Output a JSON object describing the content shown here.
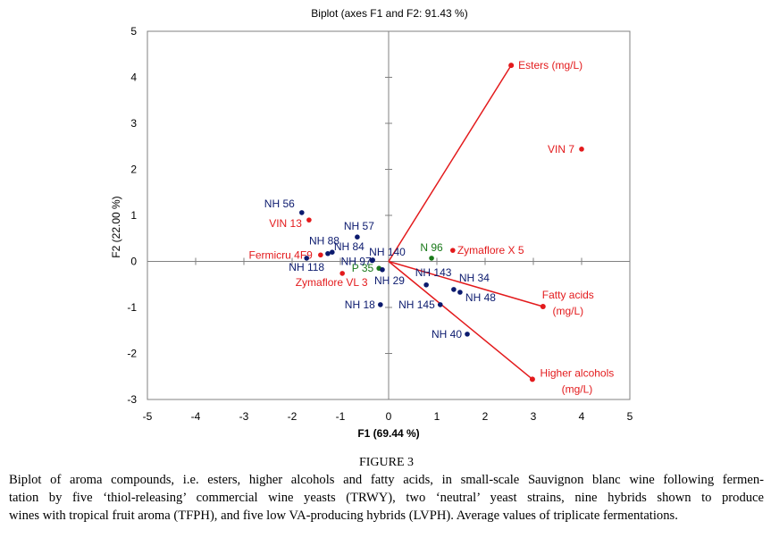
{
  "chart_data": {
    "type": "scatter",
    "subtype": "biplot",
    "title": "Biplot (axes F1 and F2: 91.43 %)",
    "xlabel": "F1 (69.44 %)",
    "ylabel": "F2 (22.00 %)",
    "xlim": [
      -5,
      5
    ],
    "ylim": [
      -3,
      5
    ],
    "xticks": [
      "-5",
      "-4",
      "-3",
      "-2",
      "-1",
      "0",
      "1",
      "2",
      "3",
      "4",
      "5"
    ],
    "yticks": [
      "-3",
      "-2",
      "-1",
      "0",
      "1",
      "2",
      "3",
      "4",
      "5"
    ],
    "grid": false,
    "colors": {
      "variable": "#e31a1c",
      "trwy": "#e31a1c",
      "neutral": "#1a7a1a",
      "hybrid": "#0b1a6e",
      "axis": "#808080"
    },
    "variables": [
      {
        "name": "Esters (mg/L)",
        "label_lines": [
          "Esters (mg/L)"
        ],
        "x": 2.54,
        "y": 4.26
      },
      {
        "name": "Fatty acids (mg/L)",
        "label_lines": [
          "Fatty acids",
          "(mg/L)"
        ],
        "x": 3.2,
        "y": -0.98
      },
      {
        "name": "Higher alcohols (mg/L)",
        "label_lines": [
          "Higher alcohols",
          "(mg/L)"
        ],
        "x": 2.98,
        "y": -2.56
      }
    ],
    "observations": [
      {
        "name": "VIN 7",
        "group": "trwy",
        "x": 4.0,
        "y": 2.44
      },
      {
        "name": "VIN 13",
        "group": "trwy",
        "x": -1.65,
        "y": 0.9
      },
      {
        "name": "Fermicru 4F9",
        "group": "trwy",
        "x": -1.41,
        "y": 0.14
      },
      {
        "name": "Zymaflore VL 3",
        "group": "trwy",
        "x": -0.96,
        "y": -0.26
      },
      {
        "name": "Zymaflore X 5",
        "group": "trwy",
        "x": 1.33,
        "y": 0.24
      },
      {
        "name": "N 96",
        "group": "neutral",
        "x": 0.89,
        "y": 0.07
      },
      {
        "name": "P 35",
        "group": "neutral",
        "x": -0.2,
        "y": -0.15
      },
      {
        "name": "NH 56",
        "group": "hybrid",
        "x": -1.8,
        "y": 1.06
      },
      {
        "name": "NH 57",
        "group": "hybrid",
        "x": -0.65,
        "y": 0.53
      },
      {
        "name": "NH 88",
        "group": "hybrid",
        "x": -1.26,
        "y": 0.17
      },
      {
        "name": "NH 84",
        "group": "hybrid",
        "x": -1.17,
        "y": 0.2
      },
      {
        "name": "NH 118",
        "group": "hybrid",
        "x": -1.7,
        "y": 0.07
      },
      {
        "name": "NH 97",
        "group": "hybrid",
        "x": -0.34,
        "y": 0.02
      },
      {
        "name": "NH 140",
        "group": "hybrid",
        "x": -0.33,
        "y": 0.03
      },
      {
        "name": "NH 29",
        "group": "hybrid",
        "x": -0.13,
        "y": -0.18
      },
      {
        "name": "NH 18",
        "group": "hybrid",
        "x": -0.17,
        "y": -0.94
      },
      {
        "name": "NH 143",
        "group": "hybrid",
        "x": 0.78,
        "y": -0.51
      },
      {
        "name": "NH 34",
        "group": "hybrid",
        "x": 1.35,
        "y": -0.61
      },
      {
        "name": "NH 48",
        "group": "hybrid",
        "x": 1.48,
        "y": -0.67
      },
      {
        "name": "NH 145",
        "group": "hybrid",
        "x": 1.07,
        "y": -0.94
      },
      {
        "name": "NH 40",
        "group": "hybrid",
        "x": 1.63,
        "y": -1.58
      }
    ]
  },
  "figure": {
    "label": "FIGURE 3",
    "caption_lines": [
      "Biplot of aroma compounds, i.e. esters, higher alcohols and fatty acids, in small-scale Sauvignon blanc wine following fermen-",
      "tation by five ‘thiol-releasing’ commercial wine yeasts (TRWY), two ‘neutral’ yeast strains, nine hybrids shown to produce",
      "wines with tropical fruit aroma (TFPH), and five low VA-producing hybrids (LVPH). Average values of triplicate fermentations."
    ]
  }
}
